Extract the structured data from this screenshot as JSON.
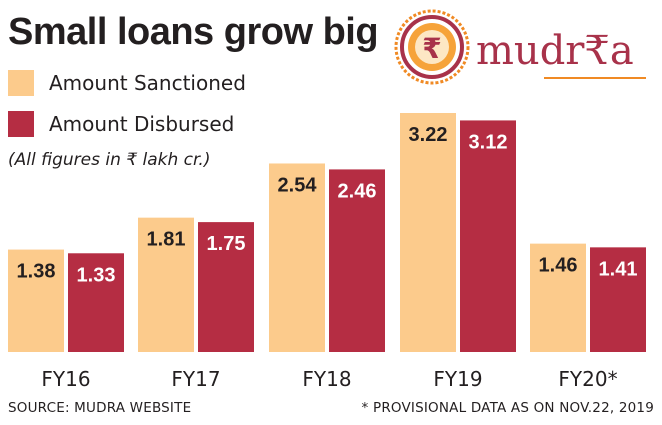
{
  "title": "Small loans grow big",
  "note": "(All figures in ₹ lakh cr.)",
  "logo": {
    "symbol": "₹",
    "text": "mudr₹a"
  },
  "footer": {
    "source": "SOURCE: MUDRA WEBSITE",
    "provisional": "* PROVISIONAL DATA AS ON  NOV.22, 2019"
  },
  "colors": {
    "sanctioned": "#fccb8c",
    "disbursed": "#b52d43",
    "text": "#231f20",
    "logo_red": "#a8324a",
    "logo_orange": "#f08a24"
  },
  "chart_data": {
    "type": "bar",
    "categories": [
      "FY16",
      "FY17",
      "FY18",
      "FY19",
      "FY20*"
    ],
    "series": [
      {
        "name": "Amount Sanctioned",
        "values": [
          1.38,
          1.81,
          2.54,
          3.22,
          1.46
        ]
      },
      {
        "name": "Amount Disbursed",
        "values": [
          1.33,
          1.75,
          2.46,
          3.12,
          1.41
        ]
      }
    ],
    "title": "Small loans grow big",
    "ylim": [
      0,
      3.22
    ],
    "legend": "top-left",
    "grid": false
  }
}
